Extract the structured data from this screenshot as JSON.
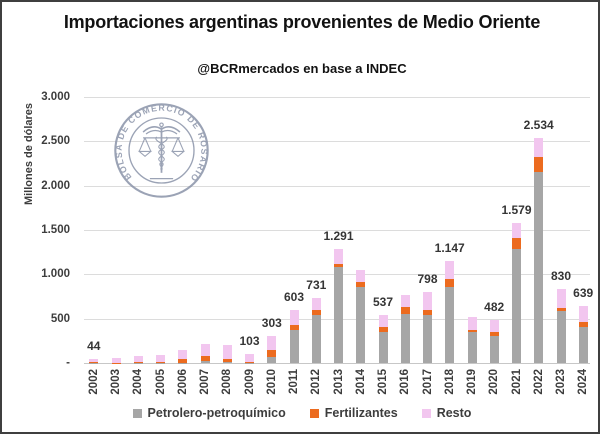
{
  "header": {
    "title": "Importaciones argentinas provenientes de Medio Oriente",
    "subtitle": "@BCRmercados en base a INDEC"
  },
  "watermark": {
    "seal_text": "BOLSA DE COMERCIO DE ROSARIO"
  },
  "chart_data": {
    "type": "bar",
    "stacked": true,
    "ylabel": "Millones de dólares",
    "ylim": [
      0,
      3000
    ],
    "grid": true,
    "legend_position": "bottom",
    "categories": [
      "2002",
      "2003",
      "2004",
      "2005",
      "2006",
      "2007",
      "2008",
      "2009",
      "2010",
      "2011",
      "2012",
      "2013",
      "2014",
      "2015",
      "2016",
      "2017",
      "2018",
      "2019",
      "2020",
      "2021",
      "2022",
      "2023",
      "2024"
    ],
    "series": [
      {
        "name": "Petrolero-petroquímico",
        "color": "#a6a6a6",
        "values": [
          3,
          2,
          3,
          3,
          5,
          25,
          8,
          3,
          70,
          370,
          545,
          1085,
          855,
          345,
          550,
          540,
          860,
          345,
          305,
          1290,
          2150,
          590,
          410
        ]
      },
      {
        "name": "Fertilizantes",
        "color": "#ec6b1f",
        "values": [
          8,
          3,
          12,
          7,
          35,
          55,
          32,
          10,
          80,
          55,
          58,
          35,
          58,
          57,
          80,
          58,
          90,
          25,
          42,
          115,
          170,
          35,
          57
        ]
      },
      {
        "name": "Resto",
        "color": "#f2c6ef",
        "values": [
          33,
          50,
          60,
          75,
          105,
          134,
          160,
          90,
          153,
          178,
          128,
          171,
          137,
          135,
          140,
          200,
          197,
          150,
          135,
          174,
          214,
          205,
          172
        ]
      }
    ],
    "totals": [
      44,
      55,
      75,
      85,
      145,
      214,
      200,
      103,
      303,
      603,
      731,
      1291,
      1050,
      537,
      770,
      798,
      1147,
      520,
      482,
      1579,
      2534,
      830,
      639
    ],
    "total_labels": [
      "44",
      null,
      null,
      null,
      null,
      null,
      null,
      "103",
      "303",
      "603",
      "731",
      "1.291",
      null,
      "537",
      null,
      "798",
      "1.147",
      null,
      "482",
      "1.579",
      "2.534",
      "830",
      "639"
    ],
    "y_ticks": [
      {
        "value": 3000,
        "label": "3.000"
      },
      {
        "value": 2500,
        "label": "2.500"
      },
      {
        "value": 2000,
        "label": "2.000"
      },
      {
        "value": 1500,
        "label": "1.500"
      },
      {
        "value": 1000,
        "label": "1.000"
      },
      {
        "value": 500,
        "label": "500"
      },
      {
        "value": 0,
        "label": "-"
      }
    ]
  }
}
